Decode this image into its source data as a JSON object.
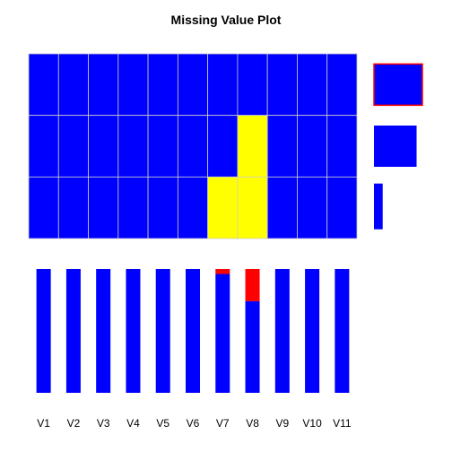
{
  "chart_data": {
    "type": "heatmap",
    "title": "Missing Value Plot",
    "variables": [
      "V1",
      "V2",
      "V3",
      "V4",
      "V5",
      "V6",
      "V7",
      "V8",
      "V9",
      "V10",
      "V11"
    ],
    "patterns": [
      {
        "missing": [
          0,
          0,
          0,
          0,
          0,
          0,
          0,
          0,
          0,
          0,
          0
        ],
        "relative_frequency": 1.0
      },
      {
        "missing": [
          0,
          0,
          0,
          0,
          0,
          0,
          0,
          1,
          0,
          0,
          0
        ],
        "relative_frequency": 0.88
      },
      {
        "missing": [
          0,
          0,
          0,
          0,
          0,
          0,
          1,
          1,
          0,
          0,
          0
        ],
        "relative_frequency": 0.18
      }
    ],
    "missing_fraction": [
      0,
      0,
      0,
      0,
      0,
      0,
      0.04,
      0.26,
      0,
      0,
      0
    ],
    "colors": {
      "observed": "#0000ff",
      "missing_pattern": "#ffff00",
      "missing_bar": "#ff0000",
      "grid": "#cccccc",
      "selected_outline": "#ff0000"
    }
  }
}
